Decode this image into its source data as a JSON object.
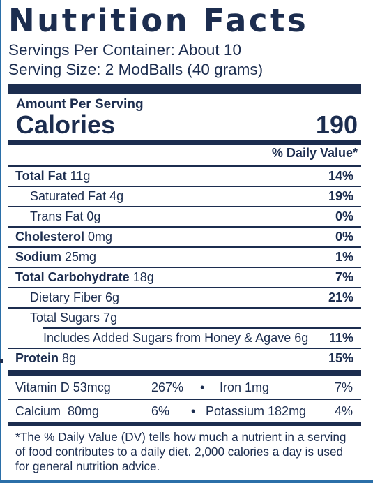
{
  "title": "Nutrition Facts",
  "servings_per_container": "Servings Per Container: About 10",
  "serving_size": "Serving Size: 2 ModBalls (40 grams)",
  "amount_per_serving": "Amount Per Serving",
  "calories_label": "Calories",
  "calories_value": "190",
  "daily_value_header": "% Daily Value*",
  "nutrients": [
    {
      "name": "Total Fat",
      "amount": " 11g",
      "dv": "14%"
    },
    {
      "name": "Saturated Fat 4g",
      "amount": "",
      "dv": "19%"
    },
    {
      "name": "Trans Fat 0g",
      "amount": "",
      "dv": "0%"
    },
    {
      "name": "Cholesterol",
      "amount": " 0mg",
      "dv": "0%"
    },
    {
      "name": "Sodium",
      "amount": " 25mg",
      "dv": "1%"
    },
    {
      "name": "Total Carbohydrate",
      "amount": " 18g",
      "dv": "7%"
    },
    {
      "name": "Dietary Fiber 6g",
      "amount": "",
      "dv": "21%"
    },
    {
      "name": "Total Sugars 7g",
      "amount": "",
      "dv": ""
    },
    {
      "name": "Includes Added Sugars from Honey & Agave 6g",
      "amount": "",
      "dv": "11%"
    },
    {
      "name": "Protein",
      "amount": " 8g",
      "dv": "15%"
    }
  ],
  "vitamins": {
    "vitamin_d": {
      "name": "Vitamin D 53mcg",
      "dv": "267%"
    },
    "iron": {
      "name": "Iron 1mg",
      "dv": "7%"
    },
    "calcium": {
      "name": "Calcium  80mg",
      "dv": "6%"
    },
    "potassium": {
      "name": "Potassium 182mg",
      "dv": "4%"
    },
    "separator": "•"
  },
  "footnote": "*The % Daily Value (DV) tells how much a nutrient in a serving of food contributes to a daily diet. 2,000 calories a day is used for general nutrition advice.",
  "colors": {
    "ink": "#1c2d4f",
    "edge": "#2b6fa8"
  }
}
